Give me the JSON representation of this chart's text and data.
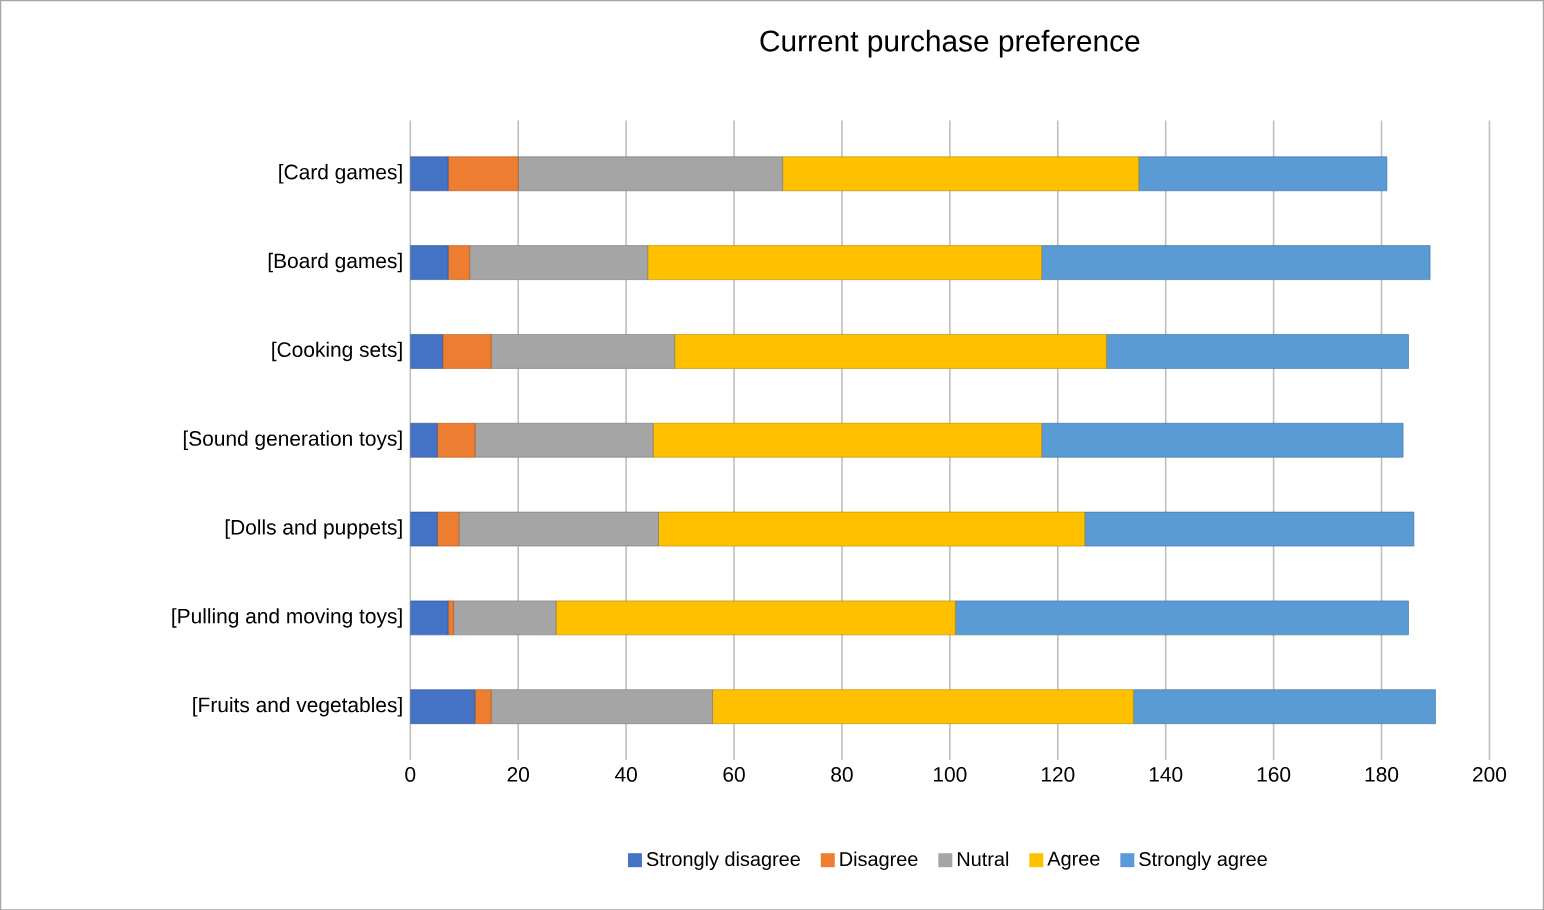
{
  "chart_data": {
    "type": "bar",
    "orientation": "horizontal",
    "stacked": true,
    "title": "Current purchase preference",
    "categories": [
      "[Card games]",
      "[Board games]",
      "[Cooking sets]",
      "[Sound generation toys]",
      "[Dolls and puppets]",
      "[Pulling and moving toys]",
      "[Fruits and vegetables]"
    ],
    "series": [
      {
        "name": "Strongly disagree",
        "color": "#4472c4",
        "values": [
          7,
          7,
          6,
          5,
          5,
          7,
          12
        ]
      },
      {
        "name": "Disagree",
        "color": "#ed7d31",
        "values": [
          13,
          4,
          9,
          7,
          4,
          1,
          3
        ]
      },
      {
        "name": "Nutral",
        "color": "#a5a5a5",
        "values": [
          49,
          33,
          34,
          33,
          37,
          19,
          41
        ]
      },
      {
        "name": "Agree",
        "color": "#ffc000",
        "values": [
          66,
          73,
          80,
          72,
          79,
          74,
          78
        ]
      },
      {
        "name": "Strongly agree",
        "color": "#5b9bd5",
        "values": [
          46,
          72,
          56,
          67,
          61,
          84,
          56
        ]
      }
    ],
    "xlim": [
      0,
      200
    ],
    "xticks": [
      0,
      20,
      40,
      60,
      80,
      100,
      120,
      140,
      160,
      180,
      200
    ],
    "grid": "x",
    "legend": "bottom"
  }
}
